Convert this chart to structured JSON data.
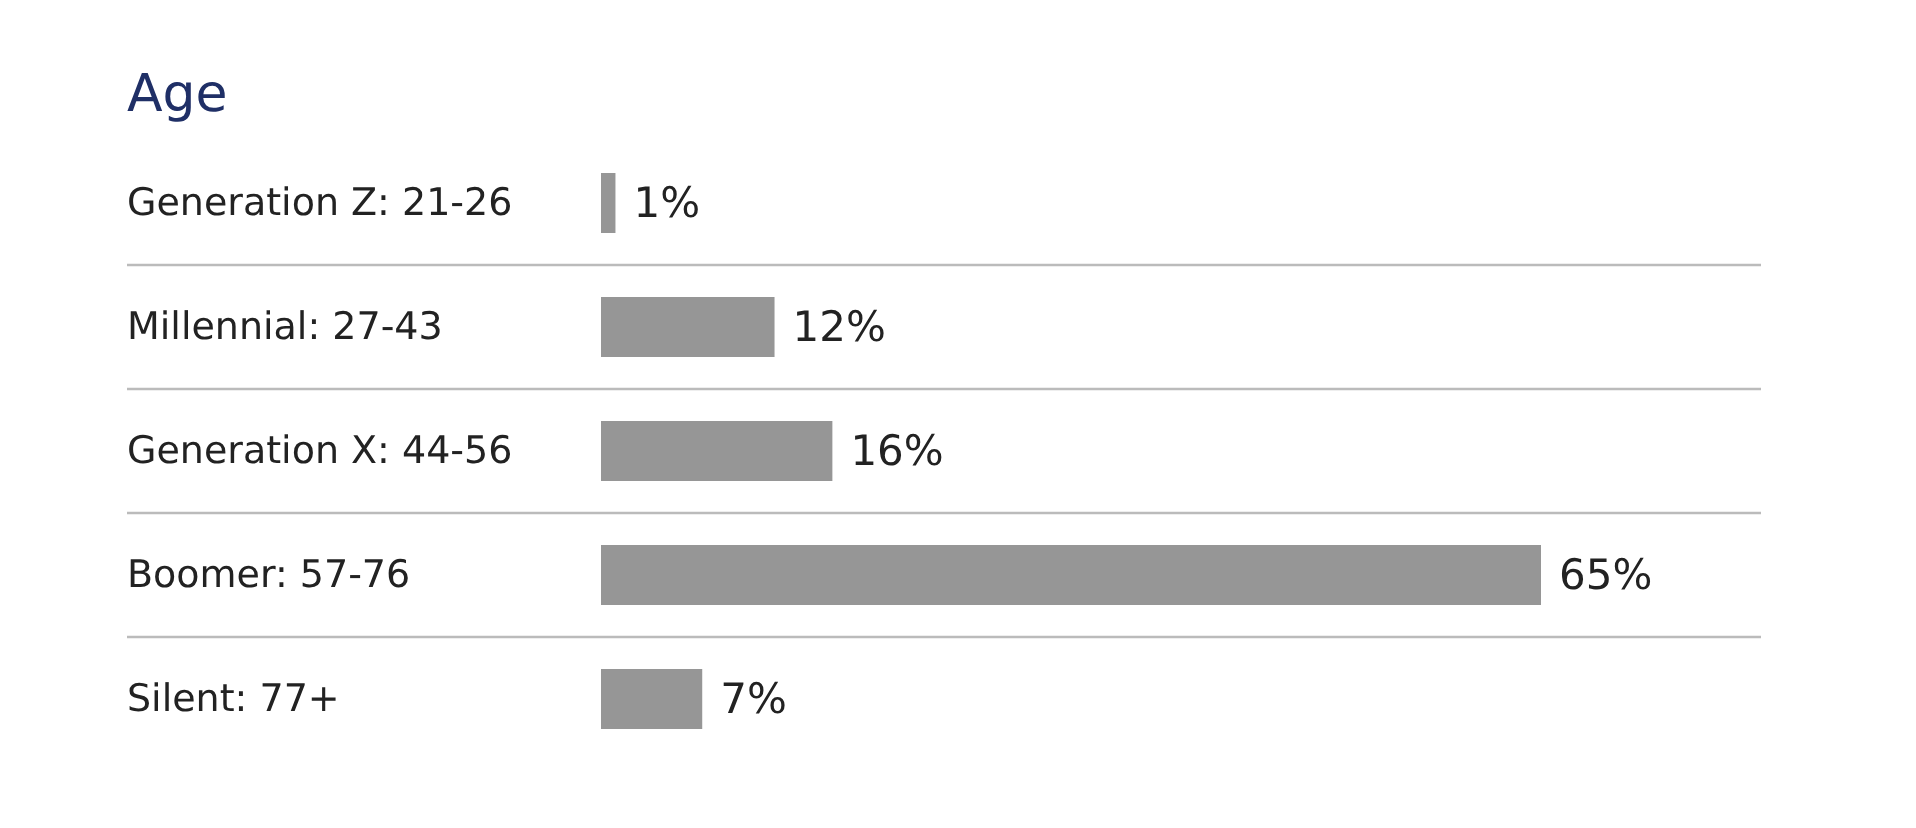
{
  "chart_data": {
    "type": "bar",
    "orientation": "horizontal",
    "title": "Age",
    "categories": [
      "Generation Z: 21-26",
      "Millennial: 27-43",
      "Generation X: 44-56",
      "Boomer: 57-76",
      "Silent: 77+"
    ],
    "values": [
      1,
      12,
      16,
      65,
      7
    ],
    "value_labels": [
      "1%",
      "12%",
      "16%",
      "65%",
      "7%"
    ],
    "color": "#969696",
    "grid": "y"
  }
}
